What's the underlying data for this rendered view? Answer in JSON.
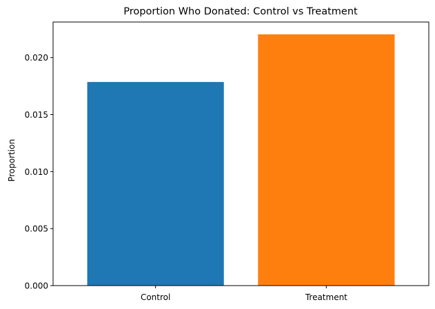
{
  "chart_data": {
    "type": "bar",
    "title": "Proportion Who Donated: Control vs Treatment",
    "xlabel": "",
    "ylabel": "Proportion",
    "categories": [
      "Control",
      "Treatment"
    ],
    "values": [
      0.01786,
      0.02204
    ],
    "colors": [
      "#1f77b4",
      "#ff7f0e"
    ],
    "ylim": [
      0,
      0.02312
    ],
    "yticks": [
      0.0,
      0.005,
      0.01,
      0.015,
      0.02
    ],
    "ytick_labels": [
      "0.000",
      "0.005",
      "0.010",
      "0.015",
      "0.020"
    ],
    "grid": false,
    "legend": "none"
  }
}
